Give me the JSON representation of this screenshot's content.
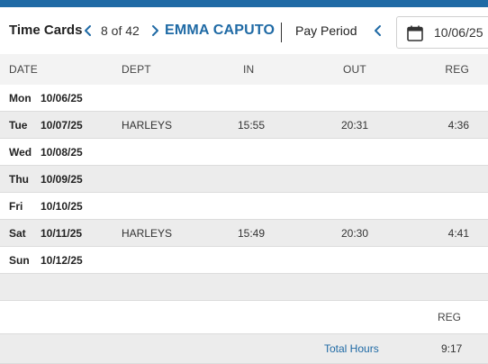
{
  "header": {
    "title": "Time Cards",
    "counter": "8 of 42",
    "employee_name": "EMMA CAPUTO",
    "pay_period_label": "Pay Period",
    "period_start": "10/06/25"
  },
  "colors": {
    "accent": "#1f6aa5",
    "row_shade": "#ececec",
    "header_bg": "#f3f3f3"
  },
  "icons": {
    "prev": "chevron-left-icon",
    "next": "chevron-right-icon",
    "calendar": "calendar-icon"
  },
  "table": {
    "columns": [
      "DATE",
      "DEPT",
      "IN",
      "OUT",
      "REG"
    ],
    "rows": [
      {
        "day": "Mon",
        "date": "10/06/25",
        "dept": "",
        "in": "",
        "out": "",
        "reg": ""
      },
      {
        "day": "Tue",
        "date": "10/07/25",
        "dept": "HARLEYS",
        "in": "15:55",
        "out": "20:31",
        "reg": "4:36"
      },
      {
        "day": "Wed",
        "date": "10/08/25",
        "dept": "",
        "in": "",
        "out": "",
        "reg": ""
      },
      {
        "day": "Thu",
        "date": "10/09/25",
        "dept": "",
        "in": "",
        "out": "",
        "reg": ""
      },
      {
        "day": "Fri",
        "date": "10/10/25",
        "dept": "",
        "in": "",
        "out": "",
        "reg": ""
      },
      {
        "day": "Sat",
        "date": "10/11/25",
        "dept": "HARLEYS",
        "in": "15:49",
        "out": "20:30",
        "reg": "4:41"
      },
      {
        "day": "Sun",
        "date": "10/12/25",
        "dept": "",
        "in": "",
        "out": "",
        "reg": ""
      }
    ]
  },
  "summary": {
    "reg_header": "REG",
    "total_label": "Total Hours",
    "total_reg": "9:17"
  }
}
